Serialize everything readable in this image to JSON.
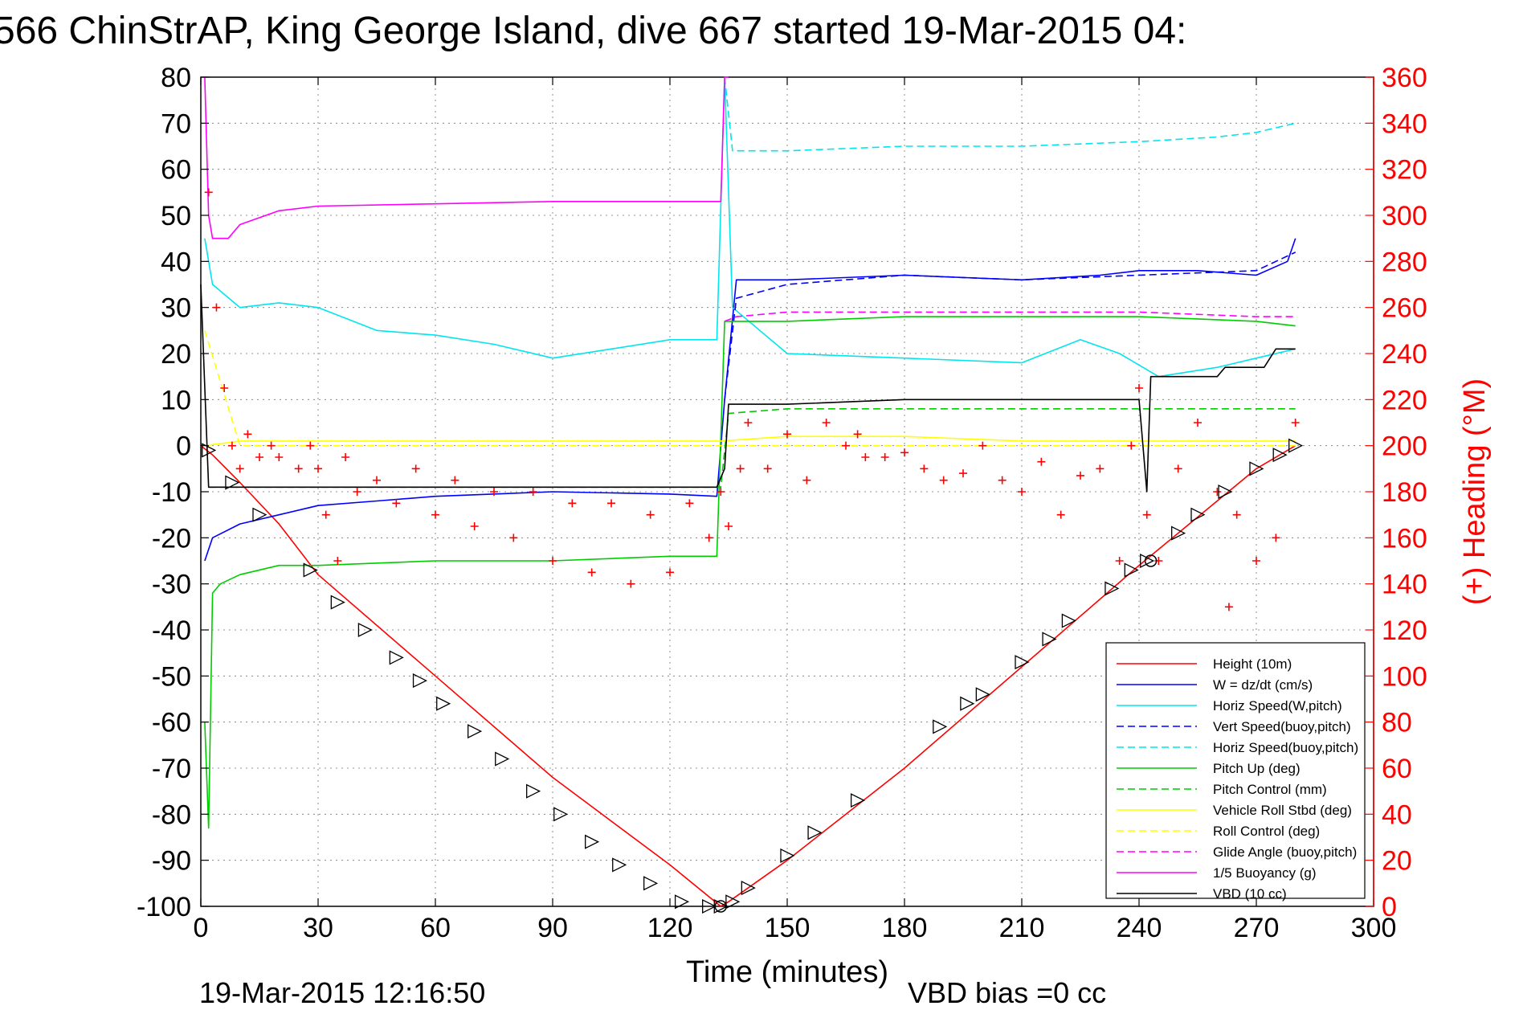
{
  "chart_data": {
    "type": "line",
    "title": "566 ChinStrAP, King George Island, dive 667 started 19-Mar-2015 04:",
    "xlabel": "Time (minutes)",
    "ylabel": "",
    "ylabel_right": "(+) Heading (°M)",
    "xlim": [
      0,
      300
    ],
    "ylim": [
      -100,
      80
    ],
    "ylim_right": [
      0,
      360
    ],
    "x_ticks": [
      0,
      30,
      60,
      90,
      120,
      150,
      180,
      210,
      240,
      270,
      300
    ],
    "y_ticks": [
      80,
      70,
      60,
      50,
      40,
      30,
      20,
      10,
      0,
      -10,
      -20,
      -30,
      -40,
      -50,
      -60,
      -70,
      -80,
      -90,
      -100
    ],
    "y_ticks_right": [
      360,
      340,
      320,
      300,
      280,
      260,
      240,
      220,
      200,
      180,
      160,
      140,
      120,
      100,
      80,
      60,
      40,
      20,
      0
    ],
    "grid": true,
    "legend_position": "bottom-right",
    "footer_left": "19-Mar-2015 12:16:50",
    "footer_right": "VBD bias =0 cc",
    "series": [
      {
        "name": "Height (10m)",
        "color": "#ff0000",
        "dash": "solid",
        "x": [
          0,
          3,
          10,
          20,
          30,
          60,
          90,
          120,
          133,
          135,
          150,
          180,
          210,
          240,
          270,
          280
        ],
        "y": [
          0,
          -2,
          -8,
          -17,
          -28,
          -50,
          -72,
          -91,
          -100,
          -99,
          -90,
          -70,
          -48,
          -26,
          -5,
          0
        ]
      },
      {
        "name": "W = dz/dt (cm/s)",
        "color": "#0000ff",
        "dash": "solid",
        "x": [
          1,
          3,
          10,
          20,
          30,
          45,
          60,
          90,
          120,
          132,
          134,
          137,
          150,
          180,
          210,
          230,
          240,
          255,
          270,
          278,
          280
        ],
        "y": [
          -25,
          -20,
          -17,
          -15,
          -13,
          -12,
          -11,
          -10,
          -10.5,
          -11,
          10,
          36,
          36,
          37,
          36,
          37,
          38,
          38,
          37,
          40,
          45
        ]
      },
      {
        "name": "Horiz Speed(W,pitch)",
        "color": "#00e5ee",
        "dash": "solid",
        "x": [
          1,
          3,
          10,
          20,
          30,
          45,
          60,
          75,
          90,
          105,
          120,
          132,
          134,
          136,
          150,
          180,
          210,
          225,
          235,
          245,
          260,
          270,
          280
        ],
        "y": [
          45,
          35,
          30,
          31,
          30,
          25,
          24,
          22,
          19,
          21,
          23,
          23,
          80,
          30,
          20,
          19,
          18,
          23,
          20,
          15,
          17,
          19,
          21
        ]
      },
      {
        "name": "Vert Speed(buoy,pitch)",
        "color": "#0000ff",
        "dash": "dashed",
        "x": [
          134,
          137,
          150,
          180,
          210,
          240,
          270,
          280
        ],
        "y": [
          10,
          32,
          35,
          37,
          36,
          37,
          38,
          42
        ]
      },
      {
        "name": "Horiz Speed(buoy,pitch)",
        "color": "#00e5ee",
        "dash": "dashed",
        "x": [
          134,
          136,
          150,
          180,
          210,
          240,
          260,
          270,
          280
        ],
        "y": [
          80,
          64,
          64,
          65,
          65,
          66,
          67,
          68,
          70
        ]
      },
      {
        "name": "Pitch Up (deg)",
        "color": "#00cc00",
        "dash": "solid",
        "x": [
          1,
          2,
          3,
          5,
          10,
          20,
          30,
          60,
          90,
          120,
          132,
          134,
          136,
          150,
          180,
          210,
          240,
          270,
          280
        ],
        "y": [
          -60,
          -83,
          -32,
          -30,
          -28,
          -26,
          -26,
          -25,
          -25,
          -24,
          -24,
          27,
          27,
          27,
          28,
          28,
          28,
          27,
          26
        ]
      },
      {
        "name": "Pitch Control (mm)",
        "color": "#00cc00",
        "dash": "dashed",
        "x": [
          2,
          10,
          60,
          120,
          133,
          135,
          150,
          180,
          210,
          240,
          270,
          280
        ],
        "y": [
          -9,
          -9,
          -9,
          -9,
          -9,
          7,
          8,
          8,
          8,
          8,
          8,
          8
        ]
      },
      {
        "name": "Vehicle Roll Stbd (deg)",
        "color": "#ffff00",
        "dash": "solid",
        "x": [
          1,
          10,
          30,
          60,
          90,
          120,
          133,
          150,
          180,
          210,
          240,
          270,
          280
        ],
        "y": [
          0,
          1,
          1,
          1,
          1,
          1,
          1,
          2,
          2,
          1,
          1,
          1,
          1
        ]
      },
      {
        "name": "Roll Control (deg)",
        "color": "#ffff00",
        "dash": "dashed",
        "x": [
          1,
          10,
          30,
          60,
          90,
          120,
          133,
          150,
          180,
          210,
          240,
          270,
          280
        ],
        "y": [
          25,
          0,
          0,
          0,
          0,
          0,
          0,
          0,
          0,
          0,
          0,
          0,
          0
        ]
      },
      {
        "name": "Glide Angle (buoy,pitch)",
        "color": "#ff00ff",
        "dash": "dashed",
        "x": [
          134,
          137,
          150,
          180,
          210,
          240,
          270,
          280
        ],
        "y": [
          27,
          28,
          29,
          29,
          29,
          29,
          28,
          28
        ]
      },
      {
        "name": "1/5 Buoyancy (g)",
        "color": "#ff00ff",
        "dash": "solid",
        "x": [
          1,
          2,
          3,
          7,
          10,
          20,
          30,
          60,
          90,
          120,
          132,
          133,
          134,
          135
        ],
        "y": [
          80,
          50,
          45,
          45,
          48,
          51,
          52,
          52.5,
          53,
          53,
          53,
          53,
          80,
          80
        ]
      },
      {
        "name": "VBD (10 cc)",
        "color": "#000000",
        "dash": "solid",
        "x": [
          0,
          2,
          3,
          30,
          60,
          90,
          120,
          132,
          134,
          135,
          150,
          180,
          210,
          240,
          242,
          243,
          260,
          262,
          272,
          275,
          280
        ],
        "y": [
          35,
          -9,
          -9,
          -9,
          -9,
          -9,
          -9,
          -9,
          -5,
          9,
          9,
          10,
          10,
          10,
          -10,
          15,
          15,
          17,
          17,
          21,
          21
        ]
      }
    ],
    "heading_series": {
      "name": "Heading",
      "axis": "right",
      "color": "#ff0000",
      "marker": "plus",
      "x": [
        2,
        4,
        6,
        8,
        10,
        12,
        15,
        18,
        20,
        25,
        28,
        30,
        32,
        35,
        37,
        40,
        45,
        50,
        55,
        60,
        65,
        70,
        75,
        80,
        85,
        90,
        95,
        100,
        105,
        110,
        115,
        120,
        125,
        130,
        133,
        135,
        138,
        140,
        145,
        150,
        155,
        160,
        165,
        168,
        170,
        175,
        180,
        185,
        190,
        195,
        200,
        205,
        210,
        215,
        220,
        225,
        230,
        235,
        238,
        240,
        242,
        245,
        250,
        255,
        260,
        263,
        265,
        270,
        275,
        280
      ],
      "y": [
        310,
        260,
        225,
        200,
        190,
        205,
        195,
        200,
        195,
        190,
        200,
        190,
        170,
        150,
        195,
        180,
        185,
        175,
        190,
        170,
        185,
        165,
        180,
        160,
        180,
        150,
        175,
        145,
        175,
        140,
        170,
        145,
        175,
        160,
        180,
        165,
        190,
        210,
        190,
        205,
        185,
        210,
        200,
        205,
        195,
        195,
        197,
        190,
        185,
        188,
        200,
        185,
        180,
        193,
        170,
        187,
        190,
        150,
        200,
        225,
        170,
        150,
        190,
        210,
        180,
        130,
        170,
        150,
        160,
        210
      ]
    },
    "markers": {
      "triangles_x": [
        2,
        8,
        15,
        28,
        35,
        42,
        50,
        56,
        62,
        70,
        77,
        85,
        92,
        100,
        107,
        115,
        123,
        130,
        133,
        136,
        140,
        150,
        157,
        168,
        189,
        196,
        200,
        210,
        217,
        222,
        233,
        238,
        242,
        250,
        255,
        262,
        270,
        276,
        280
      ],
      "triangles_y": [
        -1,
        -8,
        -15,
        -27,
        -34,
        -40,
        -46,
        -51,
        -56,
        -62,
        -68,
        -75,
        -80,
        -86,
        -91,
        -95,
        -99,
        -100,
        -100,
        -99,
        -96,
        -89,
        -84,
        -77,
        -61,
        -56,
        -54,
        -47,
        -42,
        -38,
        -31,
        -27,
        -25,
        -19,
        -15,
        -10,
        -5,
        -2,
        0
      ],
      "circle_points_x": [
        133,
        243
      ],
      "circle_points_y": [
        -100,
        -25
      ]
    }
  }
}
